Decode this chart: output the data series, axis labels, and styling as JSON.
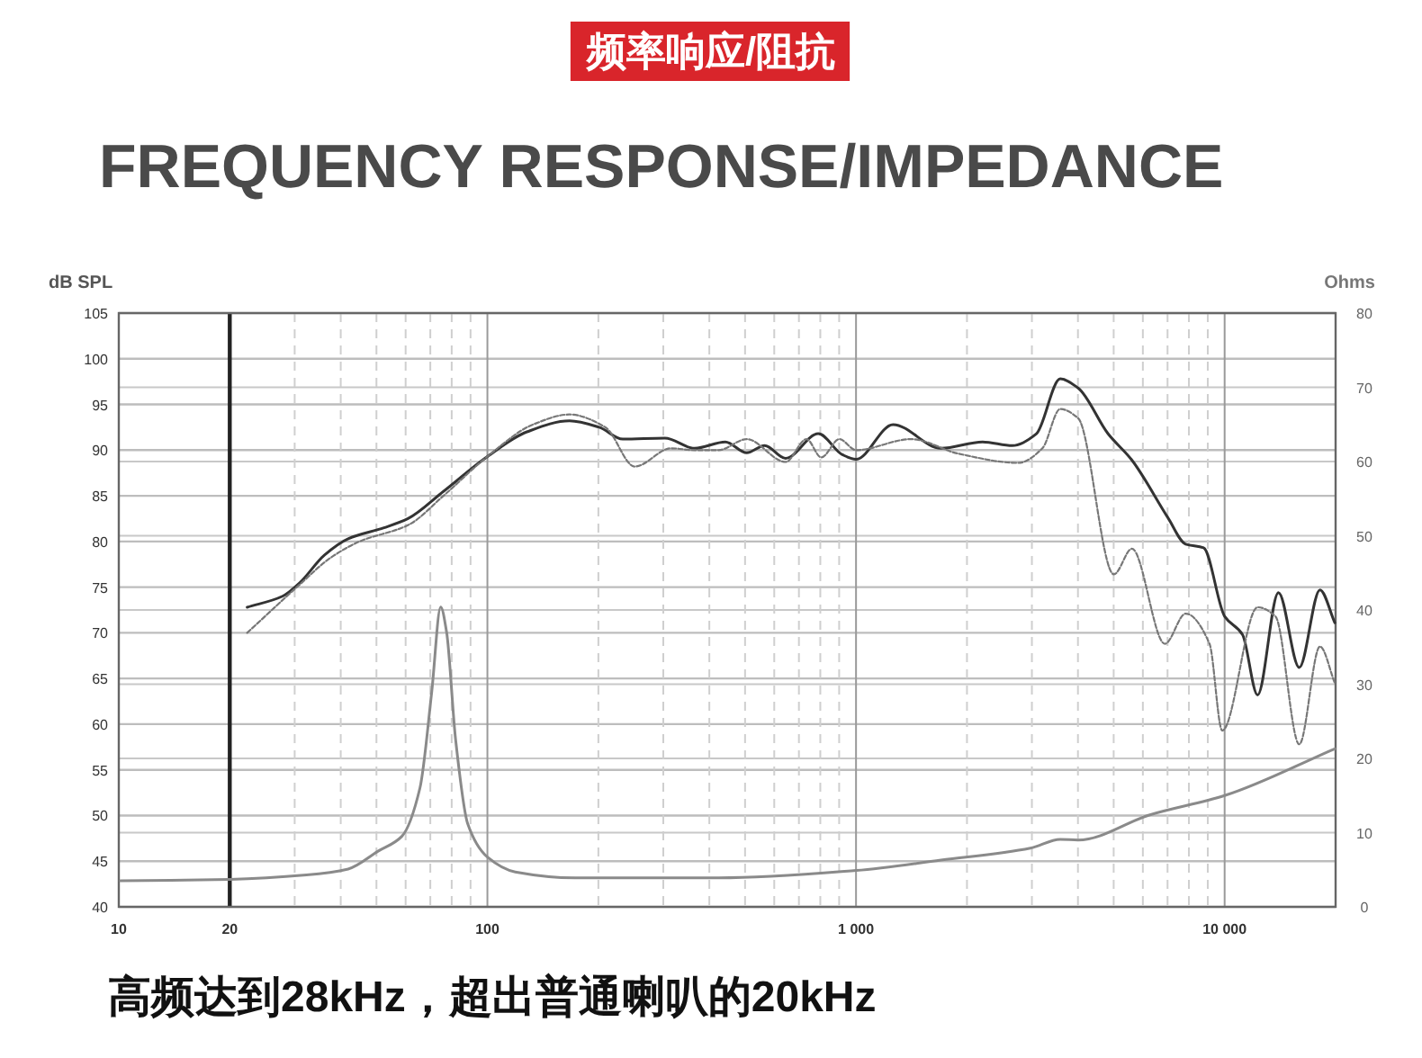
{
  "chart_data": {
    "type": "line",
    "title": "频率响应/阻抗",
    "subtitle": "FREQUENCY RESPONSE/IMPEDANCE",
    "ylabel": "dB SPL",
    "y2label": "Ohms",
    "annotations": [
      "高频达到28kHz，超出普通喇叭的20kHz"
    ],
    "log": "x",
    "grid": true,
    "marker": "none",
    "xlim": [
      10,
      20000
    ],
    "ylim": [
      40,
      105
    ],
    "y2lim": [
      0,
      80
    ],
    "xticks": [
      10,
      20,
      {
        "value": 30,
        "label": null
      },
      {
        "value": 40,
        "label": null
      },
      {
        "value": 50,
        "label": null
      },
      {
        "value": 60,
        "label": null
      },
      {
        "value": 70,
        "label": null
      },
      {
        "value": 80,
        "label": null
      },
      {
        "value": 90,
        "label": null
      },
      100,
      {
        "value": 200,
        "label": null
      },
      {
        "value": 300,
        "label": null
      },
      {
        "value": 400,
        "label": null
      },
      {
        "value": 500,
        "label": null
      },
      {
        "value": 600,
        "label": null
      },
      {
        "value": 700,
        "label": null
      },
      {
        "value": 800,
        "label": null
      },
      {
        "value": 900,
        "label": null
      },
      {
        "value": 1000,
        "label": "1 000"
      },
      {
        "value": 2000,
        "label": null
      },
      {
        "value": 3000,
        "label": null
      },
      {
        "value": 4000,
        "label": null
      },
      {
        "value": 5000,
        "label": null
      },
      {
        "value": 6000,
        "label": null
      },
      {
        "value": 7000,
        "label": null
      },
      {
        "value": 8000,
        "label": null
      },
      {
        "value": 9000,
        "label": null
      },
      {
        "value": 10000,
        "label": "10 000"
      }
    ],
    "yticks": [
      40,
      45,
      50,
      55,
      60,
      65,
      70,
      75,
      80,
      85,
      90,
      95,
      100,
      105
    ],
    "y2ticks": [
      0,
      10,
      20,
      30,
      40,
      50,
      60,
      70,
      80
    ],
    "ref_lines": [
      {
        "axis": "x",
        "value": 20,
        "color": "#222222"
      }
    ],
    "series": [
      {
        "color": "#333333",
        "line_style": "solid",
        "x": [
          22.3,
          27.8,
          31,
          36.1,
          41.9,
          52.4,
          60.9,
          76.1,
          100,
          128,
          167,
          201,
          233,
          303,
          365,
          442,
          505,
          565,
          644,
          790,
          918,
          1000,
          1260,
          1700,
          2205,
          2656,
          3086,
          3581,
          4003,
          4825,
          5604,
          7015,
          7838,
          8768,
          10000,
          11183,
          12285,
          13997,
          15938,
          18136,
          19900
        ],
        "values": [
          72.8,
          74,
          75.5,
          78.5,
          80.3,
          81.5,
          82.5,
          85.5,
          89.3,
          92,
          93.2,
          92.5,
          91.2,
          91.3,
          90.2,
          90.9,
          89.7,
          90.5,
          89.1,
          91.8,
          89.5,
          89.0,
          92.8,
          90.2,
          90.9,
          90.5,
          91.8,
          97.8,
          96.8,
          91.8,
          88.9,
          82.6,
          79.7,
          79.3,
          71.8,
          69.8,
          63.2,
          74.4,
          66.2,
          74.7,
          71.1
        ]
      },
      {
        "color": "#777777",
        "line_style": "dotted",
        "x": [
          22.3,
          31,
          37.5,
          45,
          61,
          76,
          100,
          133,
          167,
          209,
          251,
          315,
          365,
          424,
          505,
          644,
          734,
          805,
          901,
          1000,
          1410,
          1900,
          2756,
          3203,
          3581,
          4003,
          5006,
          5604,
          6885,
          7838,
          9098,
          9850,
          12285,
          13737,
          15938,
          18136,
          19900
        ],
        "values": [
          70,
          75.3,
          78.2,
          80,
          81.8,
          85,
          89.3,
          92.8,
          93.9,
          92.5,
          88.2,
          90.2,
          90,
          90,
          91.2,
          88.7,
          91.2,
          89.2,
          91.2,
          90.0,
          91.2,
          89.6,
          88.6,
          90.2,
          94.5,
          93.5,
          76.4,
          79.2,
          68.8,
          72.1,
          68.8,
          59.3,
          72.8,
          71.8,
          57.8,
          68.5,
          64.5
        ]
      },
      {
        "color": "#8a8a8a",
        "line_style": "solid",
        "axis": "y2",
        "x": [
          10.1,
          20,
          32.3,
          41.9,
          50.5,
          58.6,
          65.6,
          70.6,
          74.7,
          77.5,
          82,
          88.4,
          100,
          119,
          173,
          424,
          1000,
          1700,
          2970,
          3581,
          4003,
          6270,
          10000,
          19900
        ],
        "values": [
          3.5,
          3.7,
          4.3,
          5.1,
          7.5,
          9.5,
          16,
          28.9,
          40.4,
          37,
          22.5,
          11.2,
          6.7,
          4.7,
          3.9,
          3.9,
          4.9,
          6.3,
          7.9,
          9.1,
          9.0,
          12.4,
          15.0,
          21.3
        ]
      }
    ]
  }
}
